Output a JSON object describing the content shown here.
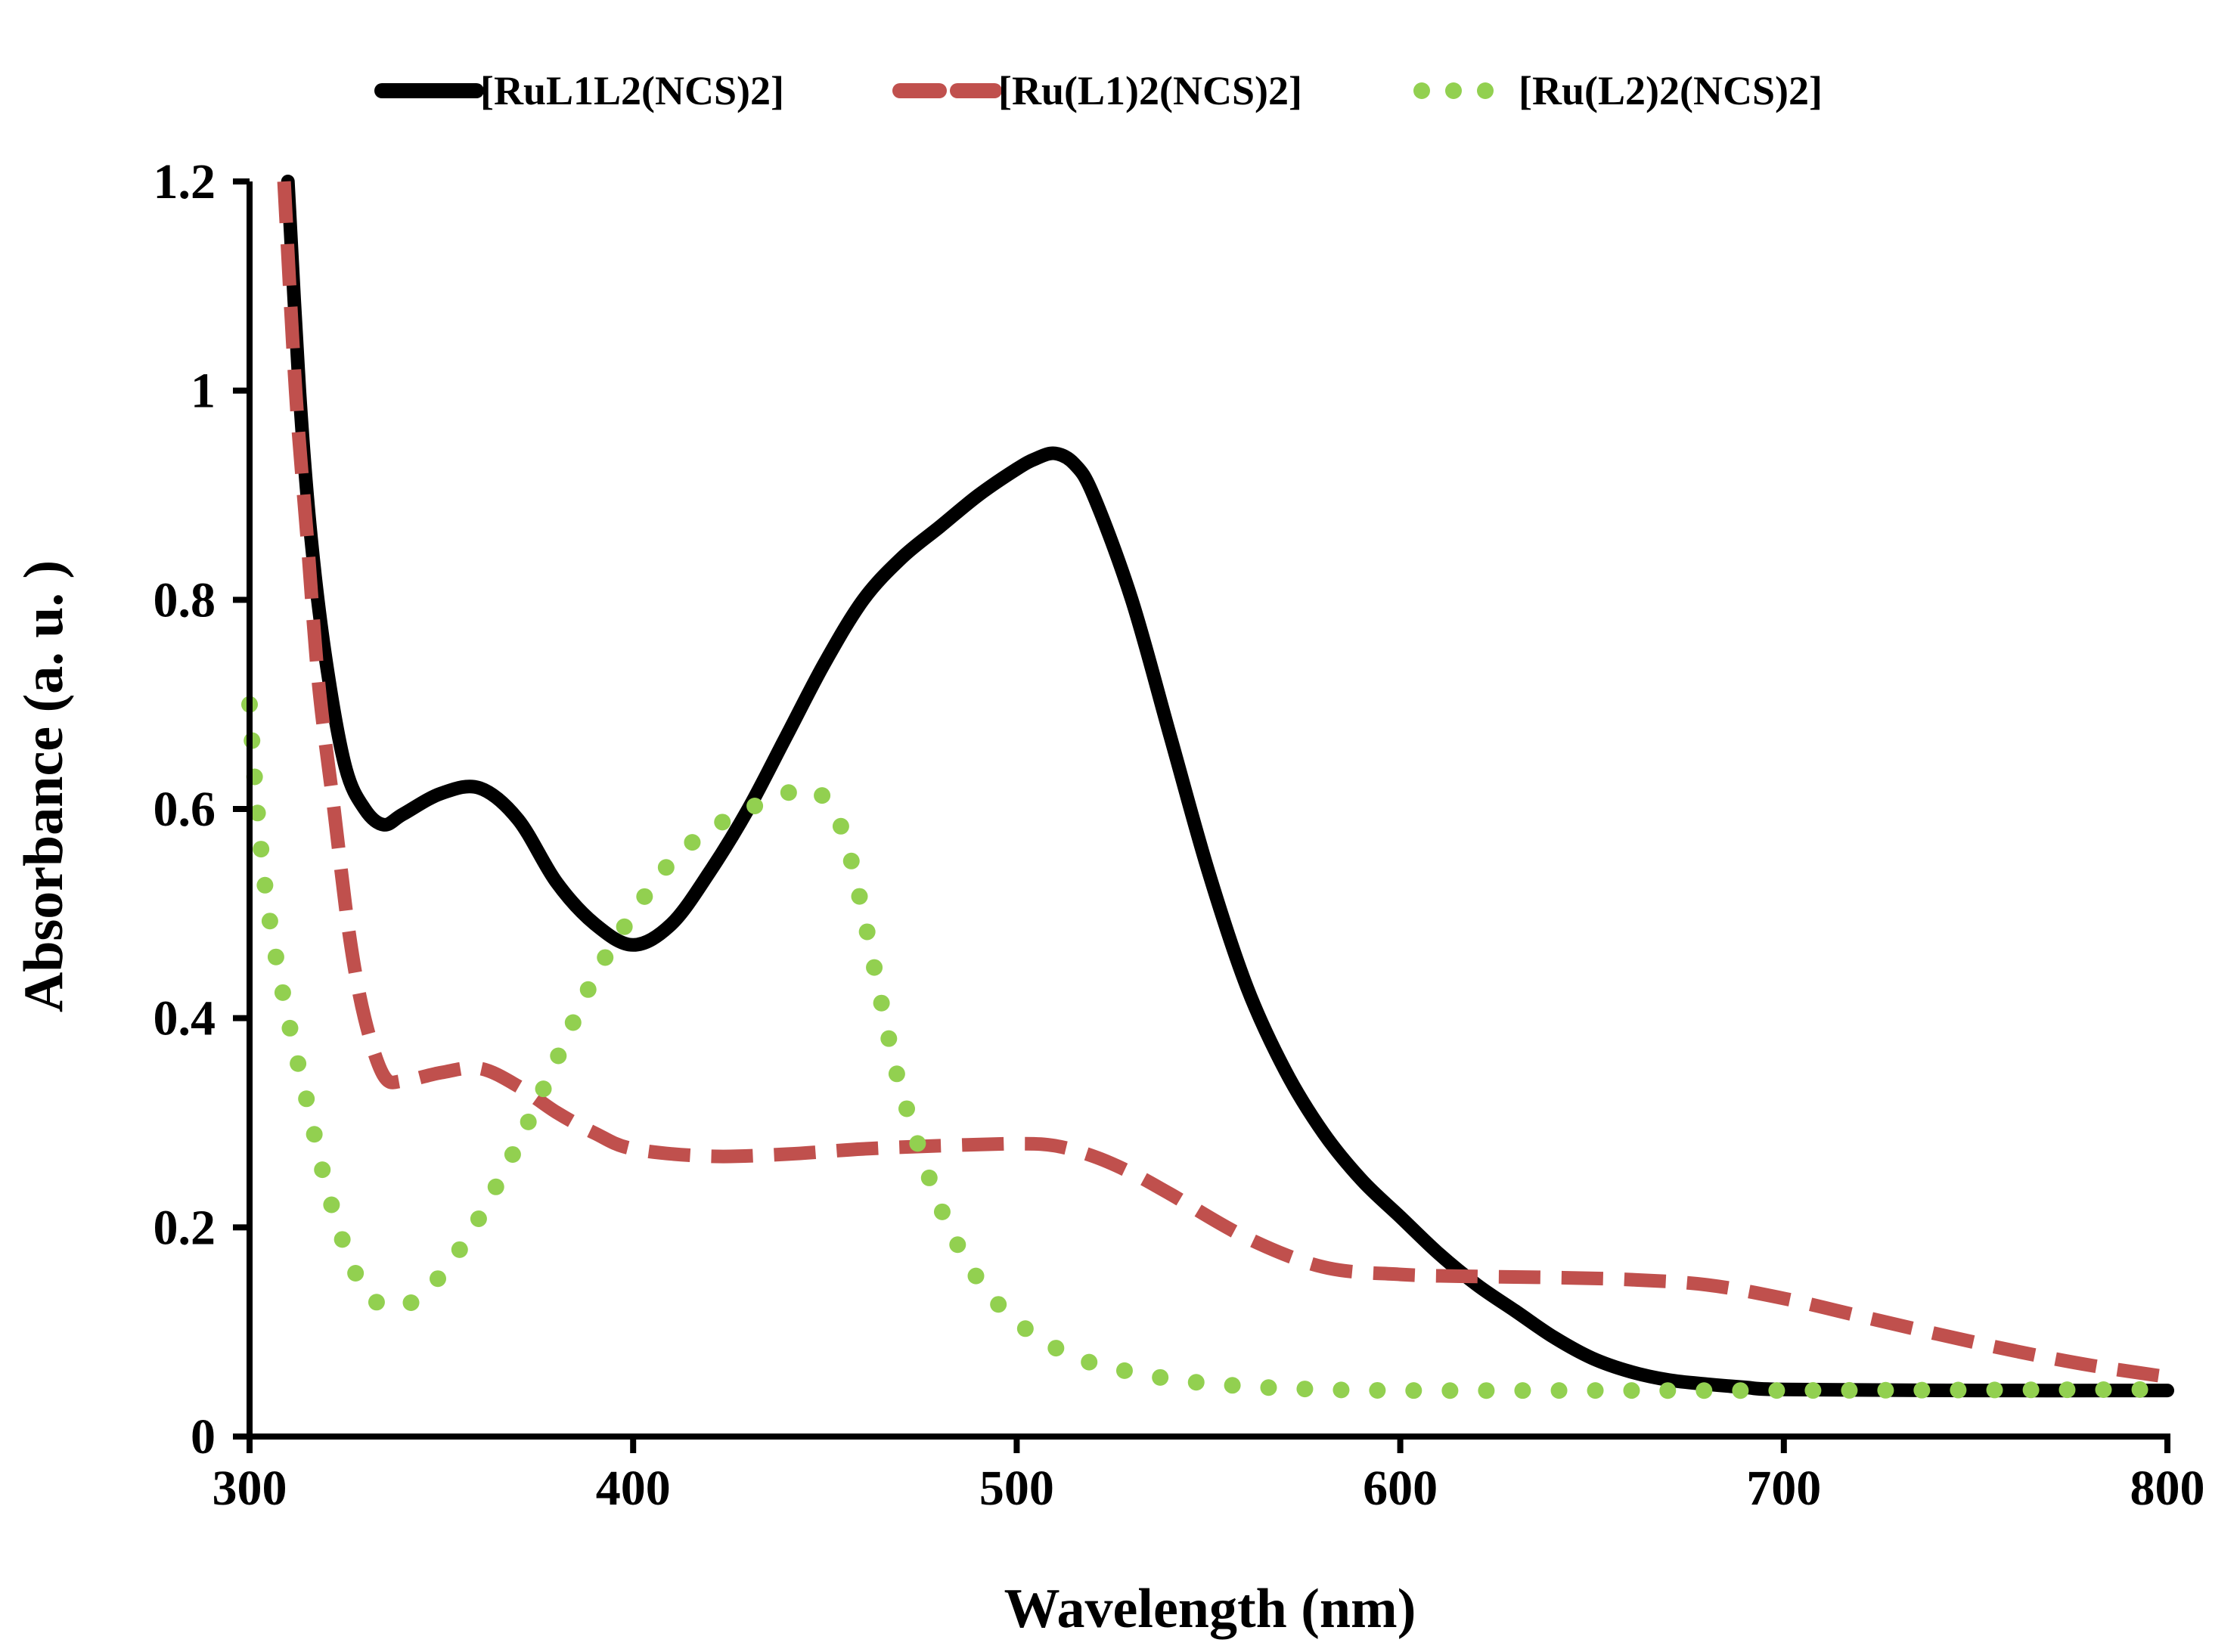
{
  "chart_data": {
    "type": "line",
    "title": "",
    "xlabel": "Wavelength (nm)",
    "ylabel": "Absorbance (a. u. )",
    "xlim": [
      300,
      800
    ],
    "ylim": [
      0,
      1.2
    ],
    "xticks": [
      300,
      400,
      500,
      600,
      700,
      800
    ],
    "yticks": [
      0,
      0.2,
      0.4,
      0.6,
      0.8,
      1.0,
      1.2
    ],
    "xtick_labels": [
      "300",
      "400",
      "500",
      "600",
      "700",
      "800"
    ],
    "ytick_labels": [
      "0",
      "0.2",
      "0.4",
      "0.6",
      "0.8",
      "1",
      "1.2"
    ],
    "grid": false,
    "legend_position": "top",
    "series": [
      {
        "name": "[RuL1L2(NCS)2]",
        "color": "#000000",
        "style": "solid",
        "x": [
          310,
          313,
          316,
          320,
          325,
          330,
          335,
          340,
          350,
          360,
          370,
          380,
          390,
          400,
          410,
          420,
          430,
          440,
          450,
          460,
          470,
          480,
          490,
          500,
          505,
          510,
          515,
          520,
          530,
          540,
          550,
          560,
          570,
          580,
          590,
          600,
          610,
          620,
          630,
          640,
          650,
          660,
          670,
          680,
          690,
          700,
          750,
          800
        ],
        "y": [
          1.2,
          1.0,
          0.86,
          0.74,
          0.64,
          0.6,
          0.585,
          0.595,
          0.615,
          0.62,
          0.59,
          0.53,
          0.49,
          0.47,
          0.49,
          0.54,
          0.6,
          0.67,
          0.74,
          0.8,
          0.84,
          0.87,
          0.9,
          0.925,
          0.935,
          0.94,
          0.93,
          0.9,
          0.8,
          0.67,
          0.54,
          0.43,
          0.35,
          0.29,
          0.245,
          0.21,
          0.175,
          0.145,
          0.12,
          0.095,
          0.075,
          0.062,
          0.054,
          0.05,
          0.047,
          0.045,
          0.044,
          0.044
        ]
      },
      {
        "name": "[Ru(L1)2(NCS)2]",
        "color": "#c0504d",
        "style": "dashed",
        "x": [
          309,
          312,
          315,
          318,
          322,
          326,
          330,
          335,
          340,
          350,
          360,
          370,
          380,
          390,
          400,
          420,
          440,
          460,
          480,
          500,
          510,
          520,
          530,
          540,
          560,
          580,
          600,
          620,
          640,
          660,
          680,
          700,
          720,
          740,
          760,
          780,
          800
        ],
        "y": [
          1.2,
          1.0,
          0.86,
          0.72,
          0.6,
          0.48,
          0.4,
          0.345,
          0.34,
          0.348,
          0.352,
          0.335,
          0.31,
          0.29,
          0.275,
          0.268,
          0.27,
          0.275,
          0.278,
          0.28,
          0.278,
          0.268,
          0.252,
          0.232,
          0.19,
          0.162,
          0.155,
          0.153,
          0.152,
          0.15,
          0.145,
          0.132,
          0.115,
          0.098,
          0.082,
          0.068,
          0.057
        ]
      },
      {
        "name": "[Ru(L2)2(NCS)2]",
        "color": "#92d050",
        "style": "dotted",
        "x": [
          300,
          302,
          305,
          310,
          315,
          320,
          325,
          330,
          335,
          340,
          345,
          350,
          355,
          360,
          370,
          380,
          390,
          400,
          410,
          420,
          430,
          440,
          445,
          450,
          455,
          460,
          465,
          470,
          480,
          490,
          500,
          510,
          520,
          540,
          560,
          580,
          600,
          650,
          700,
          800
        ],
        "y": [
          0.7,
          0.6,
          0.5,
          0.4,
          0.32,
          0.24,
          0.18,
          0.14,
          0.125,
          0.125,
          0.135,
          0.155,
          0.18,
          0.21,
          0.28,
          0.36,
          0.44,
          0.5,
          0.55,
          0.58,
          0.6,
          0.615,
          0.62,
          0.61,
          0.575,
          0.5,
          0.41,
          0.33,
          0.22,
          0.15,
          0.11,
          0.085,
          0.07,
          0.055,
          0.048,
          0.045,
          0.044,
          0.044,
          0.044,
          0.045
        ]
      }
    ]
  }
}
